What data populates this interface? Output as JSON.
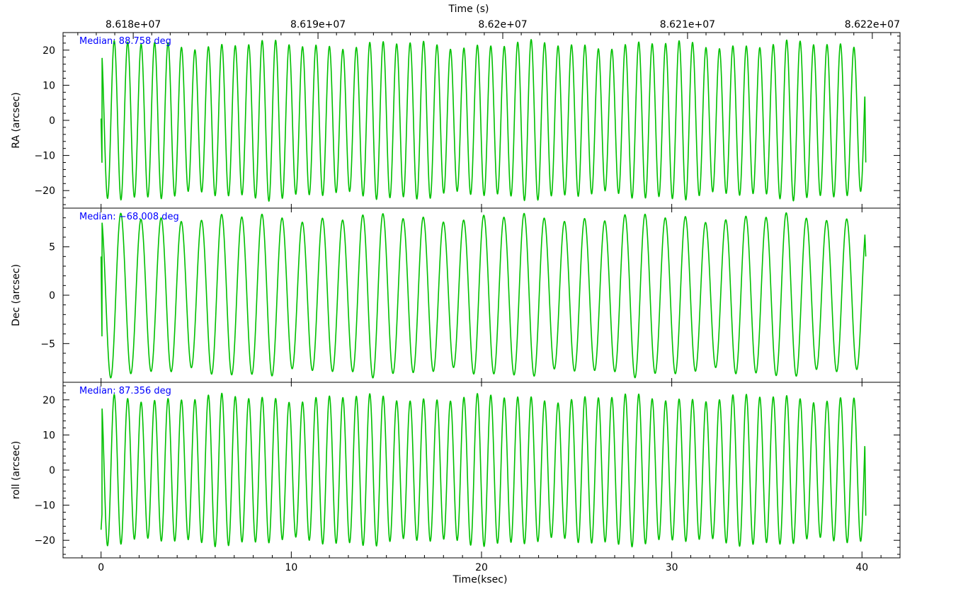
{
  "chart_data": {
    "type": "line",
    "top_axis": {
      "label": "Time (s)",
      "ticks": [
        86180000,
        86190000,
        86200000,
        86210000,
        86220000
      ],
      "tick_labels": [
        "8.618e+07",
        "8.619e+07",
        "8.62e+07",
        "8.621e+07",
        "8.622e+07"
      ],
      "xlim": [
        86176200,
        86221500
      ]
    },
    "bottom_axis": {
      "label": "Time(ksec)",
      "ticks": [
        0,
        10,
        20,
        30,
        40
      ],
      "tick_labels": [
        "0",
        "10",
        "20",
        "30",
        "40"
      ],
      "xlim": [
        -2,
        42
      ],
      "data_range": [
        0,
        40.2
      ]
    },
    "panels": [
      {
        "ylabel": "RA (arcsec)",
        "annotation": "Median: 88.758 deg",
        "ylim": [
          -25,
          25
        ],
        "yticks": [
          -20,
          -10,
          0,
          10,
          20
        ],
        "ytick_labels": [
          "−20",
          "−10",
          "0",
          "10",
          "20"
        ],
        "signal": {
          "amplitude": 21.5,
          "period_ksec": 0.707,
          "start_value": 0.5,
          "end_value": -12
        },
        "color": "#00c000"
      },
      {
        "ylabel": "Dec (arcsec)",
        "annotation": "Median: −68.008 deg",
        "ylim": [
          -9,
          9
        ],
        "yticks": [
          -5,
          0,
          5
        ],
        "ytick_labels": [
          "−5",
          "0",
          "5"
        ],
        "signal": {
          "amplitude": 8.0,
          "period_ksec": 1.06,
          "start_value": 4,
          "end_value": 4
        },
        "color": "#00c000"
      },
      {
        "ylabel": "roll (arcsec)",
        "annotation": "Median: 87.356 deg",
        "ylim": [
          -25,
          25
        ],
        "yticks": [
          -20,
          -10,
          0,
          10,
          20
        ],
        "ytick_labels": [
          "−20",
          "−10",
          "0",
          "10",
          "20"
        ],
        "signal": {
          "amplitude": 20.5,
          "period_ksec": 0.707,
          "start_value": -17,
          "end_value": -13
        },
        "color": "#00c000"
      }
    ],
    "annotation_color": "#0000ff",
    "grid": false,
    "legend": "none"
  }
}
